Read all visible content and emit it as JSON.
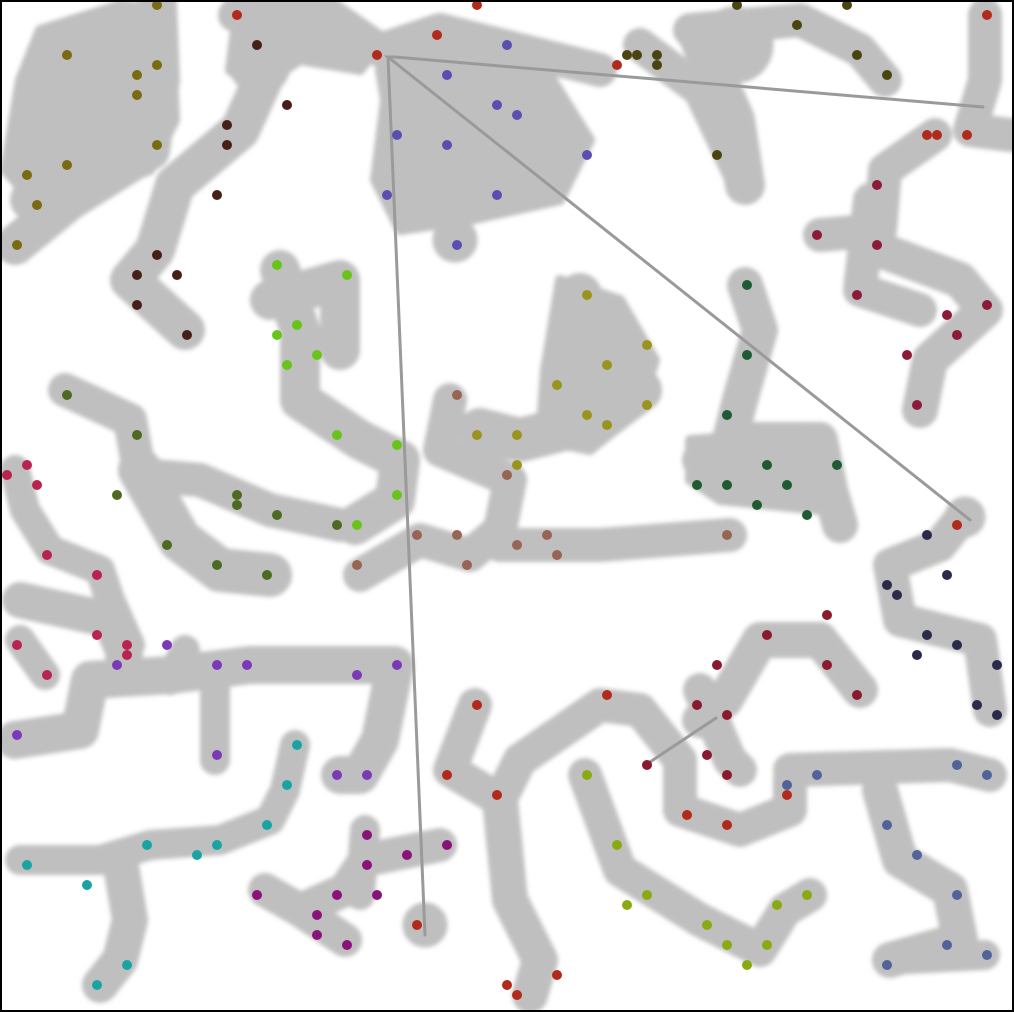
{
  "colors": {
    "background": "#ffffff",
    "frame": "#000000",
    "region": "#bfbfbf",
    "connector": "#9a9a9a"
  },
  "clusters": [
    {
      "color": "#7a6a12"
    },
    {
      "color": "#461f17"
    },
    {
      "color": "#b12a1b"
    },
    {
      "color": "#5a4fb0"
    },
    {
      "color": "#4a4510"
    },
    {
      "color": "#8c1b39"
    },
    {
      "color": "#68c419"
    },
    {
      "color": "#9a941c"
    },
    {
      "color": "#966554"
    },
    {
      "color": "#1f5a33"
    },
    {
      "color": "#4d6a22"
    },
    {
      "color": "#b8234f"
    },
    {
      "color": "#2a2a4a"
    },
    {
      "color": "#7a3ab8"
    },
    {
      "color": "#1aa3a3"
    },
    {
      "color": "#8a137a"
    },
    {
      "color": "#8aaa12"
    },
    {
      "color": "#52639a"
    },
    {
      "color": "#8a1a2e"
    }
  ]
}
